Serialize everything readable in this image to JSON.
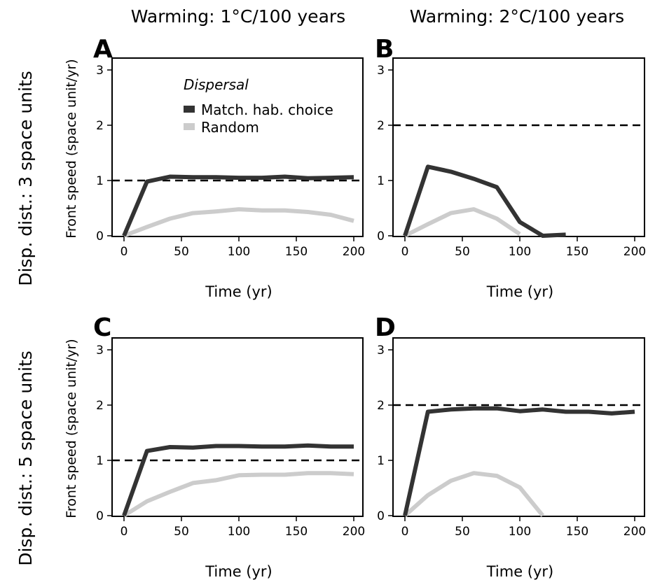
{
  "figure": {
    "col_titles": [
      "Warming: 1°C/100 years",
      "Warming: 2°C/100 years"
    ],
    "row_titles": [
      "Disp. dist.: 3 space units",
      "Disp. dist.: 5 space units"
    ],
    "legend": {
      "title": "Dispersal",
      "entries": [
        "Match. hab. choice",
        "Random"
      ]
    },
    "colors": {
      "match": "#333333",
      "random": "#cccccc",
      "dashed": "#000000"
    }
  },
  "chart_data": [
    {
      "type": "line",
      "panel": "A",
      "xlabel": "Time (yr)",
      "ylabel": "Front speed (space unit/yr)",
      "xlim": [
        0,
        200
      ],
      "ylim": [
        0,
        3
      ],
      "xticks": [
        0,
        50,
        100,
        150,
        200
      ],
      "yticks": [
        0,
        1,
        2,
        3
      ],
      "hline": 1,
      "series": [
        {
          "name": "Match. hab. choice",
          "x": [
            0,
            20,
            40,
            60,
            80,
            100,
            120,
            140,
            160,
            180,
            200
          ],
          "y": [
            0,
            0.98,
            1.07,
            1.06,
            1.06,
            1.05,
            1.05,
            1.07,
            1.04,
            1.05,
            1.06
          ]
        },
        {
          "name": "Random",
          "x": [
            0,
            20,
            40,
            60,
            80,
            100,
            120,
            140,
            160,
            180,
            200
          ],
          "y": [
            0,
            0.16,
            0.31,
            0.41,
            0.44,
            0.48,
            0.46,
            0.46,
            0.43,
            0.38,
            0.27
          ]
        }
      ]
    },
    {
      "type": "line",
      "panel": "B",
      "xlabel": "Time (yr)",
      "ylabel": "",
      "xlim": [
        0,
        200
      ],
      "ylim": [
        0,
        3
      ],
      "xticks": [
        0,
        50,
        100,
        150,
        200
      ],
      "yticks": [
        0,
        1,
        2,
        3
      ],
      "hline": 2,
      "series": [
        {
          "name": "Match. hab. choice",
          "x": [
            0,
            20,
            40,
            60,
            80,
            100,
            120,
            140
          ],
          "y": [
            0,
            1.25,
            1.16,
            1.03,
            0.88,
            0.25,
            0,
            0.02
          ]
        },
        {
          "name": "Random",
          "x": [
            0,
            20,
            40,
            60,
            80,
            100
          ],
          "y": [
            0,
            0.21,
            0.41,
            0.48,
            0.31,
            0.03
          ]
        }
      ]
    },
    {
      "type": "line",
      "panel": "C",
      "xlabel": "Time (yr)",
      "ylabel": "Front speed (space unit/yr)",
      "xlim": [
        0,
        200
      ],
      "ylim": [
        0,
        3
      ],
      "xticks": [
        0,
        50,
        100,
        150,
        200
      ],
      "yticks": [
        0,
        1,
        2,
        3
      ],
      "hline": 1,
      "series": [
        {
          "name": "Match. hab. choice",
          "x": [
            0,
            20,
            40,
            60,
            80,
            100,
            120,
            140,
            160,
            180,
            200
          ],
          "y": [
            0,
            1.17,
            1.24,
            1.23,
            1.26,
            1.26,
            1.25,
            1.25,
            1.27,
            1.25,
            1.25
          ]
        },
        {
          "name": "Random",
          "x": [
            0,
            20,
            40,
            60,
            80,
            100,
            120,
            140,
            160,
            180,
            200
          ],
          "y": [
            0,
            0.26,
            0.43,
            0.59,
            0.64,
            0.73,
            0.74,
            0.74,
            0.77,
            0.77,
            0.75
          ]
        }
      ]
    },
    {
      "type": "line",
      "panel": "D",
      "xlabel": "Time (yr)",
      "ylabel": "",
      "xlim": [
        0,
        200
      ],
      "ylim": [
        0,
        3
      ],
      "xticks": [
        0,
        50,
        100,
        150,
        200
      ],
      "yticks": [
        0,
        1,
        2,
        3
      ],
      "hline": 2,
      "series": [
        {
          "name": "Match. hab. choice",
          "x": [
            0,
            20,
            40,
            60,
            80,
            100,
            120,
            140,
            160,
            180,
            200
          ],
          "y": [
            0,
            1.88,
            1.92,
            1.94,
            1.94,
            1.89,
            1.92,
            1.88,
            1.88,
            1.85,
            1.88
          ]
        },
        {
          "name": "Random",
          "x": [
            0,
            20,
            40,
            60,
            80,
            100,
            120
          ],
          "y": [
            0,
            0.37,
            0.63,
            0.77,
            0.72,
            0.51,
            0
          ]
        }
      ]
    }
  ]
}
